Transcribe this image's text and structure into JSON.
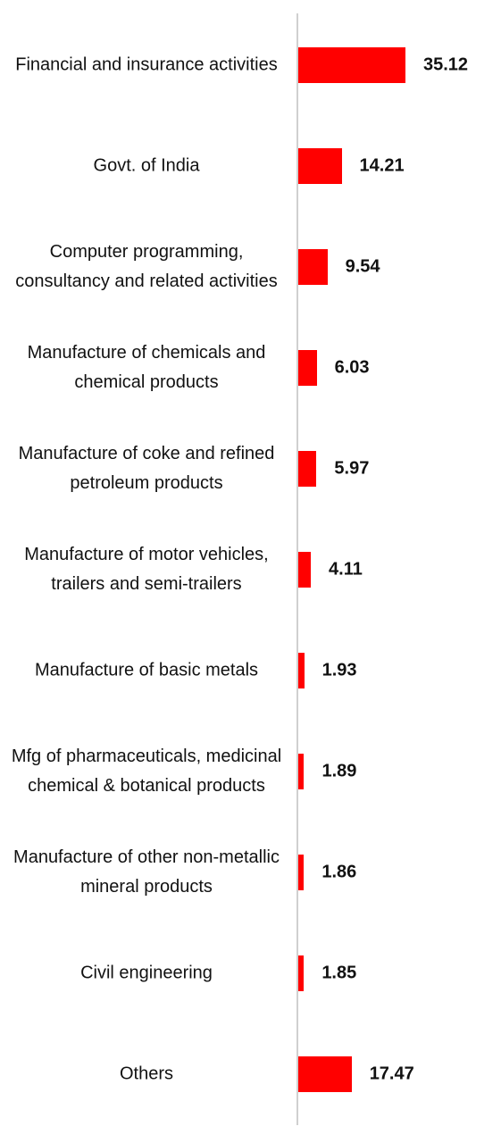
{
  "chart_data": {
    "type": "bar",
    "orientation": "horizontal",
    "color": "#ff0000",
    "categories": [
      "Financial and insurance activities",
      "Govt. of India",
      "Computer programming, consultancy and related activities",
      "Manufacture of chemicals and chemical products",
      "Manufacture of coke and refined petroleum products",
      "Manufacture of motor vehicles, trailers and semi-trailers",
      "Manufacture of basic metals",
      "Mfg of pharmaceuticals, medicinal chemical & botanical products",
      "Manufacture of other non-metallic mineral products",
      "Civil engineering",
      "Others"
    ],
    "values": [
      35.12,
      14.21,
      9.54,
      6.03,
      5.97,
      4.11,
      1.93,
      1.89,
      1.86,
      1.85,
      17.47
    ]
  }
}
